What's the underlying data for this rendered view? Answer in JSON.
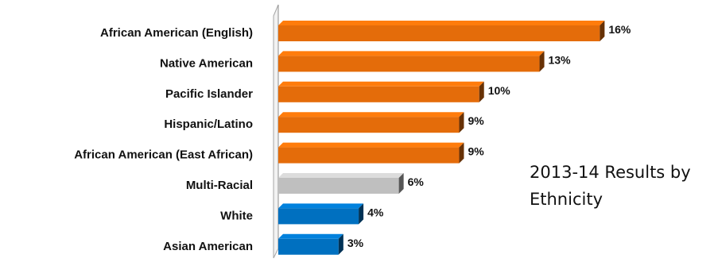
{
  "chart_data": {
    "type": "bar",
    "orientation": "horizontal",
    "title_lines": [
      "2013-14 Results by",
      "Ethnicity"
    ],
    "categories": [
      "African American (English)",
      "Native American",
      "Pacific Islander",
      "Hispanic/Latino",
      "African American (East African)",
      "Multi-Racial",
      "White",
      "Asian American"
    ],
    "values": [
      16,
      13,
      10,
      9,
      9,
      6,
      4,
      3
    ],
    "value_labels": [
      "16%",
      "13%",
      "10%",
      "9%",
      "9%",
      "6%",
      "4%",
      "3%"
    ],
    "value_unit": "%",
    "xlim": [
      0,
      16.5
    ],
    "grid": false,
    "legend": "none",
    "bar_colors": [
      "#E46C0A",
      "#E46C0A",
      "#E46C0A",
      "#E46C0A",
      "#E46C0A",
      "#BFBFBF",
      "#0070C0",
      "#0070C0"
    ],
    "style": "3d-bars"
  }
}
